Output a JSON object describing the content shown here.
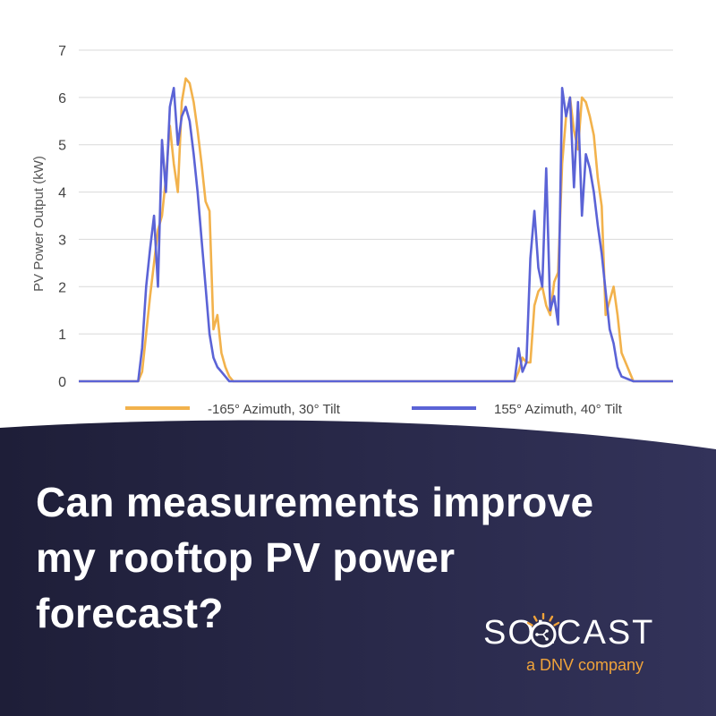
{
  "chart_data": {
    "type": "line",
    "ylabel": "PV Power Output (kW)",
    "xlabel": "",
    "ylim": [
      0,
      7
    ],
    "yticks": [
      0,
      1,
      2,
      3,
      4,
      5,
      6,
      7
    ],
    "grid": true,
    "legend_position": "bottom",
    "x": [
      0,
      5,
      10,
      15,
      16,
      17,
      18,
      19,
      20,
      21,
      22,
      23,
      24,
      25,
      26,
      27,
      28,
      29,
      30,
      31,
      32,
      33,
      34,
      35,
      36,
      37,
      38,
      39,
      40,
      41,
      42,
      43,
      44,
      45,
      50,
      55,
      60,
      65,
      70,
      75,
      80,
      85,
      90,
      95,
      100,
      105,
      110,
      111,
      112,
      113,
      114,
      115,
      116,
      117,
      118,
      119,
      120,
      121,
      122,
      123,
      124,
      125,
      126,
      127,
      128,
      129,
      130,
      131,
      132,
      133,
      134,
      135,
      136,
      137,
      140,
      145,
      150
    ],
    "series": [
      {
        "name": "-165° Azimuth, 30° Tilt",
        "color": "#f2b24c",
        "values": [
          0,
          0,
          0,
          0,
          0.2,
          1.0,
          1.8,
          2.5,
          3.2,
          3.5,
          4.3,
          5.4,
          4.6,
          4.0,
          5.9,
          6.4,
          6.3,
          5.9,
          5.3,
          4.6,
          3.8,
          3.6,
          1.1,
          1.4,
          0.6,
          0.3,
          0.1,
          0,
          0,
          0,
          0,
          0,
          0,
          0,
          0,
          0,
          0,
          0,
          0,
          0,
          0,
          0,
          0,
          0,
          0,
          0,
          0,
          0.2,
          0.5,
          0.4,
          0.4,
          1.6,
          1.9,
          2.0,
          1.6,
          1.4,
          2.1,
          2.3,
          4.6,
          5.6,
          6.0,
          5.3,
          4.9,
          6.0,
          5.9,
          5.6,
          5.2,
          4.3,
          3.7,
          1.4,
          1.7,
          2.0,
          1.4,
          0.6,
          0.0,
          0,
          0
        ]
      },
      {
        "name": "155° Azimuth, 40° Tilt",
        "color": "#5b63d6",
        "values": [
          0,
          0,
          0,
          0,
          0.7,
          2.0,
          2.8,
          3.5,
          2.0,
          5.1,
          4.0,
          5.8,
          6.2,
          5.0,
          5.6,
          5.8,
          5.5,
          4.8,
          4.0,
          3.0,
          2.0,
          1.0,
          0.5,
          0.3,
          0.2,
          0.1,
          0,
          0,
          0,
          0,
          0,
          0,
          0,
          0,
          0,
          0,
          0,
          0,
          0,
          0,
          0,
          0,
          0,
          0,
          0,
          0,
          0,
          0.7,
          0.2,
          0.4,
          2.6,
          3.6,
          2.4,
          2.0,
          4.5,
          1.5,
          1.8,
          1.2,
          6.2,
          5.6,
          6.0,
          4.1,
          5.9,
          3.5,
          4.8,
          4.5,
          4.0,
          3.3,
          2.7,
          1.9,
          1.1,
          0.8,
          0.3,
          0.1,
          0.0,
          0,
          0
        ]
      }
    ]
  },
  "headline": "Can measurements improve my rooftop PV power forecast?",
  "brand": {
    "name": "SOLCAST",
    "tagline": "a DNV company"
  },
  "colors": {
    "banner": "#23233f",
    "accent": "#f0a33a",
    "series_orange": "#f2b24c",
    "series_blue": "#5b63d6"
  }
}
